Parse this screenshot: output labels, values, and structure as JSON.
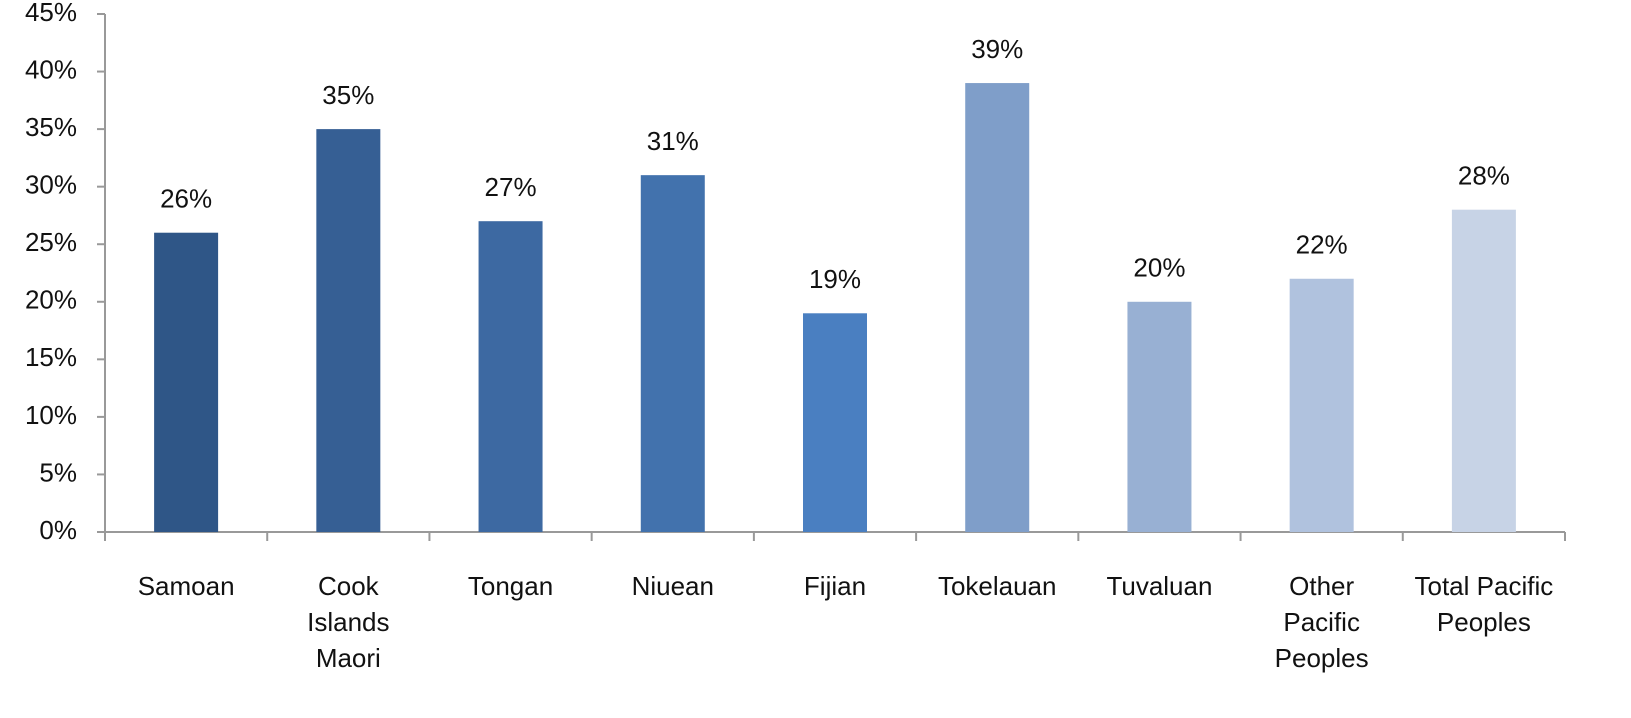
{
  "chart_data": {
    "type": "bar",
    "categories": [
      "Samoan",
      "Cook Islands Maori",
      "Tongan",
      "Niuean",
      "Fijian",
      "Tokelauan",
      "Tuvaluan",
      "Other Pacific Peoples",
      "Total Pacific Peoples"
    ],
    "values": [
      26,
      35,
      27,
      31,
      19,
      39,
      20,
      22,
      28
    ],
    "value_labels": [
      "26%",
      "35%",
      "27%",
      "31%",
      "19%",
      "39%",
      "20%",
      "22%",
      "28%"
    ],
    "colors": [
      "#2f5687",
      "#365f94",
      "#3d69a2",
      "#4272ad",
      "#4a7fc1",
      "#7f9ec9",
      "#98b0d3",
      "#b0c2de",
      "#c7d3e6"
    ],
    "ylim": [
      0,
      45
    ],
    "yticks": [
      {
        "value": 0,
        "label": "0%"
      },
      {
        "value": 5,
        "label": "5%"
      },
      {
        "value": 10,
        "label": "10%"
      },
      {
        "value": 15,
        "label": "15%"
      },
      {
        "value": 20,
        "label": "20%"
      },
      {
        "value": 25,
        "label": "25%"
      },
      {
        "value": 30,
        "label": "30%"
      },
      {
        "value": 35,
        "label": "35%"
      },
      {
        "value": 40,
        "label": "40%"
      },
      {
        "value": 45,
        "label": "45%"
      }
    ],
    "grid": false
  }
}
